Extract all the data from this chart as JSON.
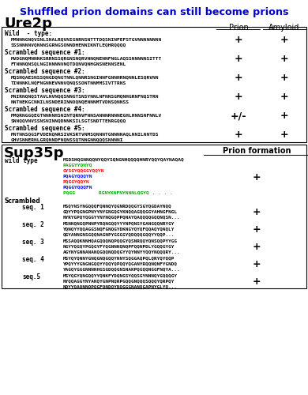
{
  "title": "Shuffled prion domains can still become prions",
  "title_color": "#0000CC",
  "ure2p_entries": [
    {
      "label": "Wild  - type:",
      "seq1": "MMNNNGNQVSNLSNALRQVNIGNRNSNTTTDQSNINFEFSTGVNNNNNNNN",
      "seq2": "SSSNNNNVQNNNSGRNGSONNDHENNIKNTLEQHRQQQQ",
      "prion": "+",
      "amyloid": "+"
    },
    {
      "label": "Scrambled sequence #1:",
      "seq1": "MVDGNQMNNNKSRRNSSQRGNSNQRVNNQNENNFNGLAQSSNNNNNSITTT",
      "seq2": "FTNNNQNSQLNGINNNNVNQTDQNVQNHGNSNENNSENL",
      "prion": "+",
      "amyloid": "+"
    },
    {
      "label": "Scrambled sequence #2:",
      "seq1": "MQSHQAESNSSQNGDQNGTNNLQNNRSNGINNFGNNHRNQNNLESQRVNN",
      "seq2": "TINNNKLNQFNGNNEVNNVQNQSSONTNNMMSIVTTRNS",
      "prion": "+",
      "amyloid": "+"
    },
    {
      "label": "Scrambled sequence #3:",
      "seq1": "MNIRNQNQSTAVLNVNQQSNNGTSNSYNNLNFNNSGMQNHGRNFNQSTRN",
      "seq2": "NNTNEKGCNNILNSNDERINNOQNQENNNMTVDNSQNNSS",
      "prion": "+",
      "amyloid": "+"
    },
    {
      "label": "Scrambled sequence #4:",
      "seq1": "MMQRNGGQEGTNNNNHSNINTQRNVFNNSANNNRNNNEGHLHNNSNFNNLV",
      "seq2": "SNNQQVNVSSNSNINNQDNNKSILSGTSNDTTENRGQQQ",
      "prion": "+/-",
      "amyloid": "+"
    },
    {
      "label": "Scrambled sequence #5:",
      "seq1": "MNTNNSQGSFVDENQNRSIVKSRTVNMSQNNNTGNNNNAQLNNILNNTDS",
      "seq2": "GHVSNNERNLGRQNNDFNQNSSQTNNGNNQQQSNNNNI",
      "prion": "+",
      "amyloid": "+"
    }
  ],
  "sup35p_wildtype_seq": [
    {
      "text": "MSDSHQGNNQQNYQQYSQNGNHQQQQHNRYQQYQAYNAQAQ",
      "color": "#000000"
    },
    {
      "text": "PAGGYYQNYQ",
      "color": "#00AA00"
    },
    {
      "text": "GYSGYQQGGYQQYN",
      "color": "#FF0000"
    },
    {
      "text": "PQAGYQQQYN",
      "color": "#0000FF"
    },
    {
      "text": "PQGGYQQYN",
      "color": "#FF0000"
    },
    {
      "text": "PQGGYQQQFN",
      "color": "#0000FF"
    },
    {
      "text": "PQGG        RGNYKNFNYNNNLQGYQ . . . .",
      "color": "#00AA00"
    }
  ],
  "sup35p_wildtype_prion": "+",
  "sup35p_scrambled": [
    {
      "label": "seq. 1",
      "seq1": "MSQYNSYNGQQQFQNNQYQGNRDQQGYSGYQGDAYNQQ",
      "seq2": "GQYYPQGNGPNYYNYGNGQGYKNQQAGQQGGYAHNGFNGL",
      "seq3": "NYRYGPQYQGGYYNYNQGQPPQNAYQAQQQQGQQNQSN...",
      "prion": "+"
    },
    {
      "label": "seq. 2",
      "seq1": "MSNNQNGQPNNPYRQNGQQYYYNPQNSYGANGQQNRYGY",
      "seq2": "YQNQYYQQAGGSNQFGNQGYDKNGYQYQFQQAQYQNQLY",
      "seq3": "QGYANNGNSGQQNAGNPYGGGGYQDQQQGQQYYQQP...",
      "prion": "+"
    },
    {
      "label": "seq. 3",
      "seq1": "MSSAQQKNNHQAGQQQNQPQQGYQSNRQQYQNSQQPYYGG",
      "seq2": "NGYYQGQYPGQGYFYQGNNNQNQPFQQNPDLYGQQGYGY",
      "seq3": "AGYNYGNNANANQGQQNQDQGYYQYNNYYQQYNQQQRY...",
      "prion": "+"
    },
    {
      "label": "seq. 4",
      "seq1": "MSYQYQNNYGNQGNQGQQYNNYSQGGAQPQLQRYQYQQP",
      "seq2": "YPQYYYGNGNGQQYYQQYQPQQYQGANYRQQNQNFYGNDQ",
      "seq3": "YAGQYGGGNNNNHGSGDQQGNSNAKPQGQQNGGFNQYA...",
      "prion": "+"
    },
    {
      "label": "seq.5",
      "seq1": "MSYQGYQNGQQYYQNKFYDQNGSYQQSGYNNNQYGQQQGY",
      "seq2": "NYQQAGGYNYANQYGNPNQRPGQQGNQQQSQQQYQRPQY",
      "seq3": "NQYYQAQNNQPQGFQNDQYNQGGGNANQGAPNYGLYQ...",
      "prion": "+"
    }
  ]
}
